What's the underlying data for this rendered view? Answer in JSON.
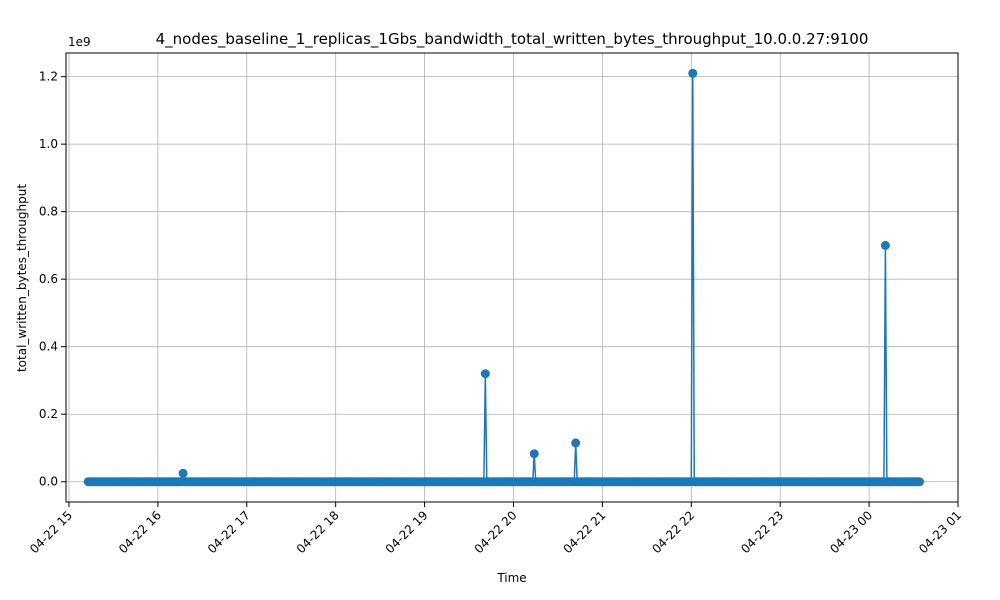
{
  "chart_data": {
    "type": "line",
    "title": "4_nodes_baseline_1_replicas_1Gbs_bandwidth_total_written_bytes_throughput_10.0.0.27:9100",
    "xlabel": "Time",
    "ylabel": "total_written_bytes_throughput",
    "y_offset_label": "1e9",
    "y_scale": 1000000000,
    "xlim": [
      "2025-04-22T14:58",
      "2025-04-23T01:00"
    ],
    "ylim": [
      -0.06,
      1.27
    ],
    "x_ticks": [
      {
        "t": "2025-04-22T15:00",
        "label": "04-22 15"
      },
      {
        "t": "2025-04-22T16:00",
        "label": "04-22 16"
      },
      {
        "t": "2025-04-22T17:00",
        "label": "04-22 17"
      },
      {
        "t": "2025-04-22T18:00",
        "label": "04-22 18"
      },
      {
        "t": "2025-04-22T19:00",
        "label": "04-22 19"
      },
      {
        "t": "2025-04-22T20:00",
        "label": "04-22 20"
      },
      {
        "t": "2025-04-22T21:00",
        "label": "04-22 21"
      },
      {
        "t": "2025-04-22T22:00",
        "label": "04-22 22"
      },
      {
        "t": "2025-04-22T23:00",
        "label": "04-22 23"
      },
      {
        "t": "2025-04-23T00:00",
        "label": "04-23 00"
      },
      {
        "t": "2025-04-23T01:00",
        "label": "04-23 01"
      }
    ],
    "y_ticks": [
      {
        "v": 0.0,
        "label": "0.0"
      },
      {
        "v": 0.2,
        "label": "0.2"
      },
      {
        "v": 0.4,
        "label": "0.4"
      },
      {
        "v": 0.6,
        "label": "0.6"
      },
      {
        "v": 0.8,
        "label": "0.8"
      },
      {
        "v": 1.0,
        "label": "1.0"
      },
      {
        "v": 1.2,
        "label": "1.2"
      }
    ],
    "grid": true,
    "series": [
      {
        "color": "#1f77b4",
        "marker": "circle",
        "baseline_sampling": {
          "start": "2025-04-22T15:13",
          "end": "2025-04-23T00:34",
          "step_seconds": 60,
          "value": 0.0
        },
        "points": [
          {
            "t": "2025-04-22T16:17",
            "y": 0.025
          },
          {
            "t": "2025-04-22T19:41",
            "y": 0.32
          },
          {
            "t": "2025-04-22T20:14",
            "y": 0.083
          },
          {
            "t": "2025-04-22T20:42",
            "y": 0.115
          },
          {
            "t": "2025-04-22T22:01",
            "y": 1.21
          },
          {
            "t": "2025-04-23T00:11",
            "y": 0.7
          }
        ]
      }
    ]
  }
}
